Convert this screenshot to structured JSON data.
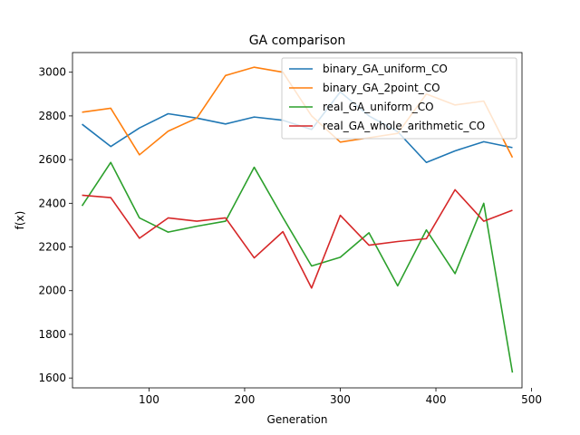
{
  "chart_data": {
    "type": "line",
    "title": "GA comparison",
    "xlabel": "Generation",
    "ylabel": "f(x)",
    "xlim": [
      20,
      490
    ],
    "ylim": [
      1555,
      3090
    ],
    "xticks": [
      100,
      200,
      300,
      400,
      500
    ],
    "yticks": [
      1600,
      1800,
      2000,
      2200,
      2400,
      2600,
      2800,
      3000
    ],
    "grid": false,
    "legend_position": "top-right",
    "x": [
      30,
      60,
      90,
      120,
      150,
      180,
      210,
      240,
      270,
      300,
      330,
      360,
      390,
      420,
      450,
      480
    ],
    "series": [
      {
        "name": "binary_GA_uniform_CO",
        "color": "#1f77b4",
        "values": [
          2762,
          2660,
          2745,
          2810,
          2790,
          2763,
          2795,
          2780,
          2738,
          2910,
          2800,
          2728,
          2587,
          2640,
          2682,
          2655
        ]
      },
      {
        "name": "binary_GA_2point_CO",
        "color": "#ff7f0e",
        "values": [
          2817,
          2835,
          2622,
          2730,
          2790,
          2985,
          3023,
          3000,
          2800,
          2680,
          2700,
          2720,
          2900,
          2850,
          2868,
          2610
        ]
      },
      {
        "name": "real_GA_uniform_CO",
        "color": "#2ca02c",
        "values": [
          2388,
          2587,
          2333,
          2268,
          2295,
          2318,
          2565,
          2335,
          2113,
          2153,
          2265,
          2022,
          2278,
          2078,
          2400,
          1625
        ]
      },
      {
        "name": "real_GA_whole_arithmetic_CO",
        "color": "#d62728",
        "values": [
          2437,
          2426,
          2240,
          2333,
          2318,
          2333,
          2150,
          2270,
          2012,
          2345,
          2208,
          2225,
          2238,
          2462,
          2318,
          2368
        ]
      }
    ]
  }
}
